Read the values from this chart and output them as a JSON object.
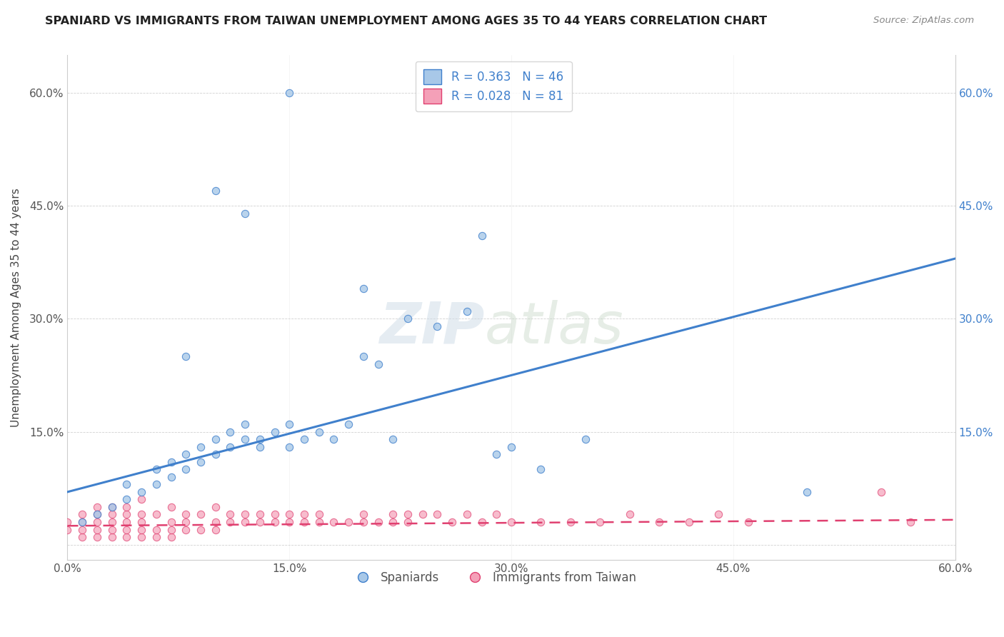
{
  "title": "SPANIARD VS IMMIGRANTS FROM TAIWAN UNEMPLOYMENT AMONG AGES 35 TO 44 YEARS CORRELATION CHART",
  "source": "Source: ZipAtlas.com",
  "ylabel": "Unemployment Among Ages 35 to 44 years",
  "xlim": [
    0.0,
    0.6
  ],
  "ylim": [
    -0.02,
    0.65
  ],
  "xticks": [
    0.0,
    0.15,
    0.3,
    0.45,
    0.6
  ],
  "xticklabels": [
    "0.0%",
    "15.0%",
    "30.0%",
    "45.0%",
    "60.0%"
  ],
  "yticks": [
    0.0,
    0.15,
    0.3,
    0.45,
    0.6
  ],
  "yticklabels_left": [
    "",
    "15.0%",
    "30.0%",
    "45.0%",
    "60.0%"
  ],
  "yticklabels_right": [
    "",
    "15.0%",
    "30.0%",
    "45.0%",
    "60.0%"
  ],
  "spaniard_color": "#a8c8e8",
  "taiwan_color": "#f4a0b8",
  "spaniard_line_color": "#4080cc",
  "taiwan_line_color": "#e04070",
  "r_spaniard": 0.363,
  "n_spaniard": 46,
  "r_taiwan": 0.028,
  "n_taiwan": 81,
  "spaniard_line_x0": 0.0,
  "spaniard_line_y0": 0.07,
  "spaniard_line_x1": 0.6,
  "spaniard_line_y1": 0.38,
  "taiwan_line_x0": 0.0,
  "taiwan_line_y0": 0.025,
  "taiwan_line_x1": 0.6,
  "taiwan_line_y1": 0.033,
  "spaniard_scatter_x": [
    0.01,
    0.02,
    0.03,
    0.04,
    0.04,
    0.05,
    0.06,
    0.06,
    0.07,
    0.07,
    0.08,
    0.08,
    0.09,
    0.09,
    0.1,
    0.1,
    0.11,
    0.11,
    0.12,
    0.12,
    0.13,
    0.13,
    0.14,
    0.15,
    0.15,
    0.16,
    0.17,
    0.18,
    0.19,
    0.2,
    0.21,
    0.22,
    0.23,
    0.25,
    0.27,
    0.28,
    0.29,
    0.3,
    0.32,
    0.35,
    0.08,
    0.1,
    0.12,
    0.2,
    0.5,
    0.15
  ],
  "spaniard_scatter_y": [
    0.03,
    0.04,
    0.05,
    0.06,
    0.08,
    0.07,
    0.08,
    0.1,
    0.09,
    0.11,
    0.1,
    0.12,
    0.11,
    0.13,
    0.12,
    0.14,
    0.13,
    0.15,
    0.14,
    0.16,
    0.13,
    0.14,
    0.15,
    0.13,
    0.16,
    0.14,
    0.15,
    0.14,
    0.16,
    0.25,
    0.24,
    0.14,
    0.3,
    0.29,
    0.31,
    0.41,
    0.12,
    0.13,
    0.1,
    0.14,
    0.25,
    0.47,
    0.44,
    0.34,
    0.07,
    0.6
  ],
  "taiwan_scatter_x": [
    0.0,
    0.0,
    0.01,
    0.01,
    0.01,
    0.01,
    0.02,
    0.02,
    0.02,
    0.02,
    0.02,
    0.03,
    0.03,
    0.03,
    0.03,
    0.03,
    0.04,
    0.04,
    0.04,
    0.04,
    0.04,
    0.05,
    0.05,
    0.05,
    0.05,
    0.05,
    0.06,
    0.06,
    0.06,
    0.07,
    0.07,
    0.07,
    0.07,
    0.08,
    0.08,
    0.08,
    0.09,
    0.09,
    0.1,
    0.1,
    0.1,
    0.11,
    0.11,
    0.12,
    0.12,
    0.13,
    0.13,
    0.14,
    0.14,
    0.15,
    0.15,
    0.16,
    0.16,
    0.17,
    0.17,
    0.18,
    0.19,
    0.2,
    0.2,
    0.21,
    0.22,
    0.22,
    0.23,
    0.23,
    0.24,
    0.25,
    0.26,
    0.27,
    0.28,
    0.29,
    0.3,
    0.32,
    0.34,
    0.36,
    0.38,
    0.4,
    0.42,
    0.44,
    0.46,
    0.55,
    0.57
  ],
  "taiwan_scatter_y": [
    0.02,
    0.03,
    0.01,
    0.02,
    0.03,
    0.04,
    0.01,
    0.02,
    0.03,
    0.04,
    0.05,
    0.01,
    0.02,
    0.03,
    0.04,
    0.05,
    0.01,
    0.02,
    0.03,
    0.04,
    0.05,
    0.01,
    0.02,
    0.03,
    0.04,
    0.06,
    0.01,
    0.02,
    0.04,
    0.01,
    0.02,
    0.03,
    0.05,
    0.02,
    0.03,
    0.04,
    0.02,
    0.04,
    0.02,
    0.03,
    0.05,
    0.03,
    0.04,
    0.03,
    0.04,
    0.03,
    0.04,
    0.03,
    0.04,
    0.03,
    0.04,
    0.03,
    0.04,
    0.03,
    0.04,
    0.03,
    0.03,
    0.03,
    0.04,
    0.03,
    0.03,
    0.04,
    0.03,
    0.04,
    0.04,
    0.04,
    0.03,
    0.04,
    0.03,
    0.04,
    0.03,
    0.03,
    0.03,
    0.03,
    0.04,
    0.03,
    0.03,
    0.04,
    0.03,
    0.07,
    0.03
  ]
}
